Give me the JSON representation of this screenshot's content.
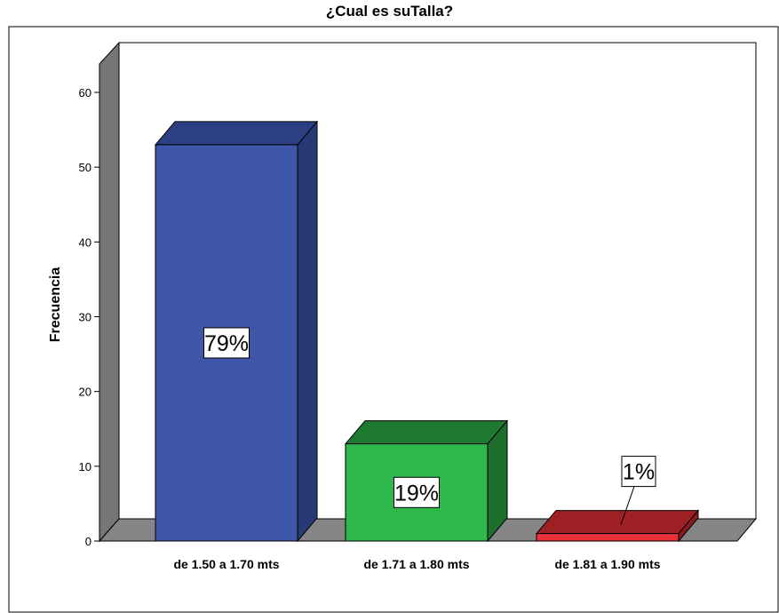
{
  "chart_data": {
    "type": "bar",
    "title": "¿Cual es suTalla?",
    "xlabel": "",
    "ylabel": "Frecuencia",
    "categories": [
      "de 1.50 a 1.70 mts",
      "de 1.71 a 1.80 mts",
      "de 1.81 a 1.90 mts"
    ],
    "values": [
      53,
      13,
      1
    ],
    "data_labels": [
      "79%",
      "19%",
      "1%"
    ],
    "ylim": [
      0,
      60
    ],
    "yticks": [
      "0",
      "10",
      "20",
      "30",
      "40",
      "50",
      "60"
    ],
    "grid": false,
    "legend": "none",
    "three_d": true,
    "colors": {
      "bars": [
        "#3f57a9",
        "#2eb84b",
        "#e8313a"
      ],
      "bar_tops": [
        "#2b3f82",
        "#1f7a31",
        "#9e1f24"
      ],
      "bar_sides": [
        "#273a74",
        "#1e6e2e",
        "#8a1b20"
      ],
      "floor": "#858585",
      "wall": "#767676"
    }
  }
}
